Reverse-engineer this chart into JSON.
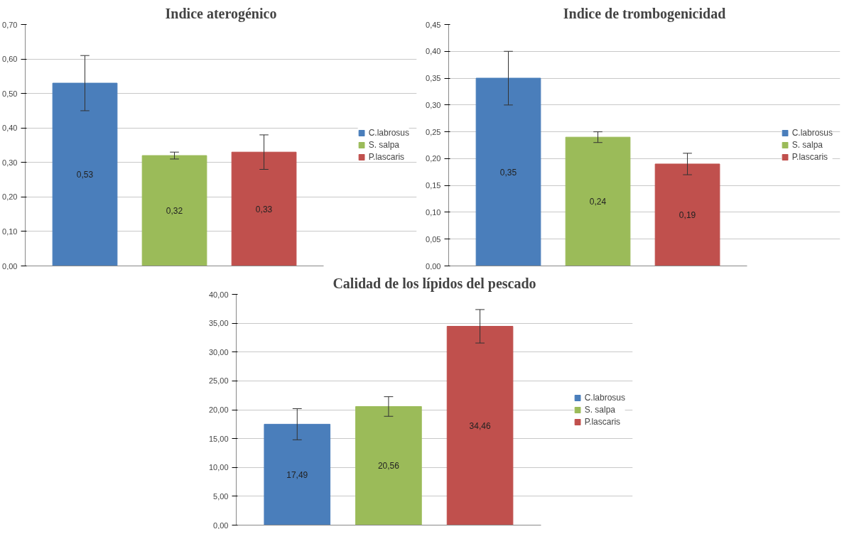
{
  "chart_data": [
    {
      "type": "bar",
      "title": "Indice aterogénico",
      "categories": [
        null
      ],
      "series": [
        {
          "name": "C.labrosus",
          "color": "#4a7ebb",
          "values": [
            0.53
          ],
          "errors": [
            0.08
          ],
          "value_labels": [
            "0,53"
          ]
        },
        {
          "name": "S. salpa",
          "color": "#9bbb59",
          "values": [
            0.32
          ],
          "errors": [
            0.01
          ],
          "value_labels": [
            "0,32"
          ]
        },
        {
          "name": "P.lascaris",
          "color": "#c0504d",
          "values": [
            0.33
          ],
          "errors": [
            0.05
          ],
          "value_labels": [
            "0,33"
          ]
        }
      ],
      "ylim": [
        0,
        0.7
      ],
      "yticks": [
        {
          "value": 0,
          "label": "0,00"
        },
        {
          "value": 0.1,
          "label": "0,10"
        },
        {
          "value": 0.2,
          "label": "0,20"
        },
        {
          "value": 0.3,
          "label": "0,30"
        },
        {
          "value": 0.4,
          "label": "0,40"
        },
        {
          "value": 0.5,
          "label": "0,50"
        },
        {
          "value": 0.6,
          "label": "0,60"
        },
        {
          "value": 0.7,
          "label": "0,70"
        }
      ],
      "grid": "y",
      "legend": "right",
      "tick_labels": "y"
    },
    {
      "type": "bar",
      "title": "Indice de trombogenicidad",
      "categories": [
        null
      ],
      "series": [
        {
          "name": "C.labrosus",
          "color": "#4a7ebb",
          "values": [
            0.35
          ],
          "errors": [
            0.05
          ],
          "value_labels": [
            "0,35"
          ]
        },
        {
          "name": "S. salpa",
          "color": "#9bbb59",
          "values": [
            0.24
          ],
          "errors": [
            0.01
          ],
          "value_labels": [
            "0,24"
          ]
        },
        {
          "name": "P.lascaris",
          "color": "#c0504d",
          "values": [
            0.19
          ],
          "errors": [
            0.02
          ],
          "value_labels": [
            "0,19"
          ]
        }
      ],
      "ylim": [
        0,
        0.45
      ],
      "yticks": [
        {
          "value": 0,
          "label": "0,00"
        },
        {
          "value": 0.05,
          "label": "0,05"
        },
        {
          "value": 0.1,
          "label": "0,10"
        },
        {
          "value": 0.15,
          "label": "0,15"
        },
        {
          "value": 0.2,
          "label": "0,20"
        },
        {
          "value": 0.25,
          "label": "0,25"
        },
        {
          "value": 0.3,
          "label": "0,30"
        },
        {
          "value": 0.35,
          "label": "0,35"
        },
        {
          "value": 0.4,
          "label": "0,40"
        },
        {
          "value": 0.45,
          "label": "0,45"
        }
      ],
      "grid": "y",
      "legend": "right",
      "tick_labels": "y"
    },
    {
      "type": "bar",
      "title": "Calidad de los lípidos del pescado",
      "categories": [
        null
      ],
      "series": [
        {
          "name": "C.labrosus",
          "color": "#4a7ebb",
          "values": [
            17.49
          ],
          "errors": [
            2.7
          ],
          "value_labels": [
            "17,49"
          ]
        },
        {
          "name": "S. salpa",
          "color": "#9bbb59",
          "values": [
            20.56
          ],
          "errors": [
            1.7
          ],
          "value_labels": [
            "20,56"
          ]
        },
        {
          "name": "P.lascaris",
          "color": "#c0504d",
          "values": [
            34.46
          ],
          "errors": [
            2.9
          ],
          "value_labels": [
            "34,46"
          ]
        }
      ],
      "ylim": [
        0,
        40
      ],
      "yticks": [
        {
          "value": 0,
          "label": "0,00"
        },
        {
          "value": 5,
          "label": "5,00"
        },
        {
          "value": 10,
          "label": "10,00"
        },
        {
          "value": 15,
          "label": "15,00"
        },
        {
          "value": 20,
          "label": "20,00"
        },
        {
          "value": 25,
          "label": "25,00"
        },
        {
          "value": 30,
          "label": "30,00"
        },
        {
          "value": 35,
          "label": "35,00"
        },
        {
          "value": 40,
          "label": "40,00"
        }
      ],
      "grid": "y",
      "legend": "right",
      "tick_labels": "y"
    }
  ]
}
